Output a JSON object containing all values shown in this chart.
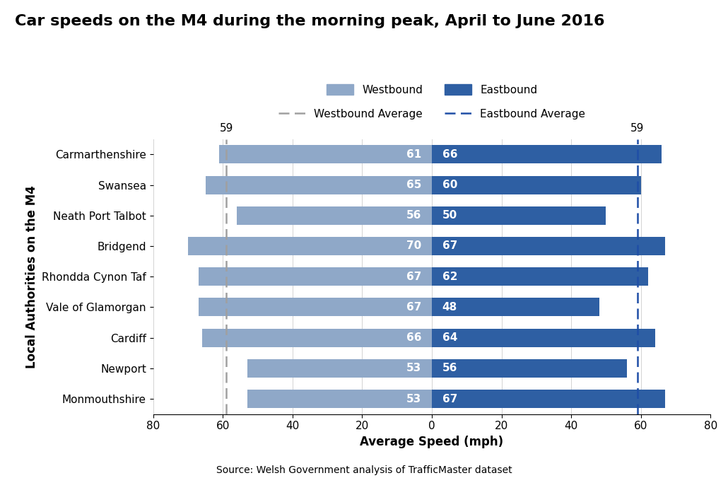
{
  "title": "Car speeds on the M4 during the morning peak, April to June 2016",
  "ylabel": "Local Authorities on the M4",
  "xlabel": "Average Speed (mph)",
  "source": "Source: Welsh Government analysis of TrafficMaster dataset",
  "categories": [
    "Carmarthenshire",
    "Swansea",
    "Neath Port Talbot",
    "Bridgend",
    "Rhondda Cynon Taf",
    "Vale of Glamorgan",
    "Cardiff",
    "Newport",
    "Monmouthshire"
  ],
  "westbound": [
    61,
    65,
    56,
    70,
    67,
    67,
    66,
    53,
    53
  ],
  "eastbound": [
    66,
    60,
    50,
    67,
    62,
    48,
    64,
    56,
    67
  ],
  "westbound_avg": 59,
  "eastbound_avg": 59,
  "westbound_color": "#8FA8C8",
  "eastbound_color": "#2E5FA3",
  "westbound_avg_color": "#A0A0A0",
  "eastbound_avg_color": "#1F4EA6",
  "title_fontsize": 16,
  "label_fontsize": 11,
  "tick_fontsize": 11,
  "bar_height": 0.6,
  "xlim": 80
}
